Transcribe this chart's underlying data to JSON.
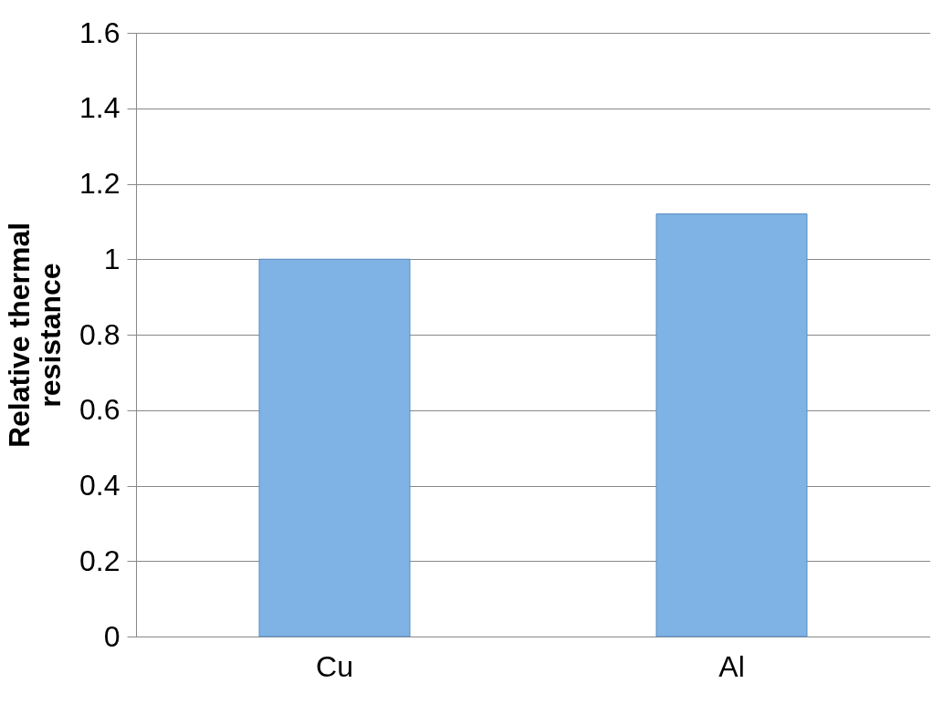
{
  "chart_data": {
    "type": "bar",
    "ylabel": "Relative thermal resistance",
    "categories": [
      "Cu",
      "Al"
    ],
    "values": [
      1.0,
      1.12
    ],
    "color": "#7fb3e6",
    "ylim": [
      0,
      1.6
    ],
    "yticks": [
      0,
      0.2,
      0.4,
      0.6,
      0.8,
      1,
      1.2,
      1.4,
      1.6
    ],
    "grid": "y"
  }
}
